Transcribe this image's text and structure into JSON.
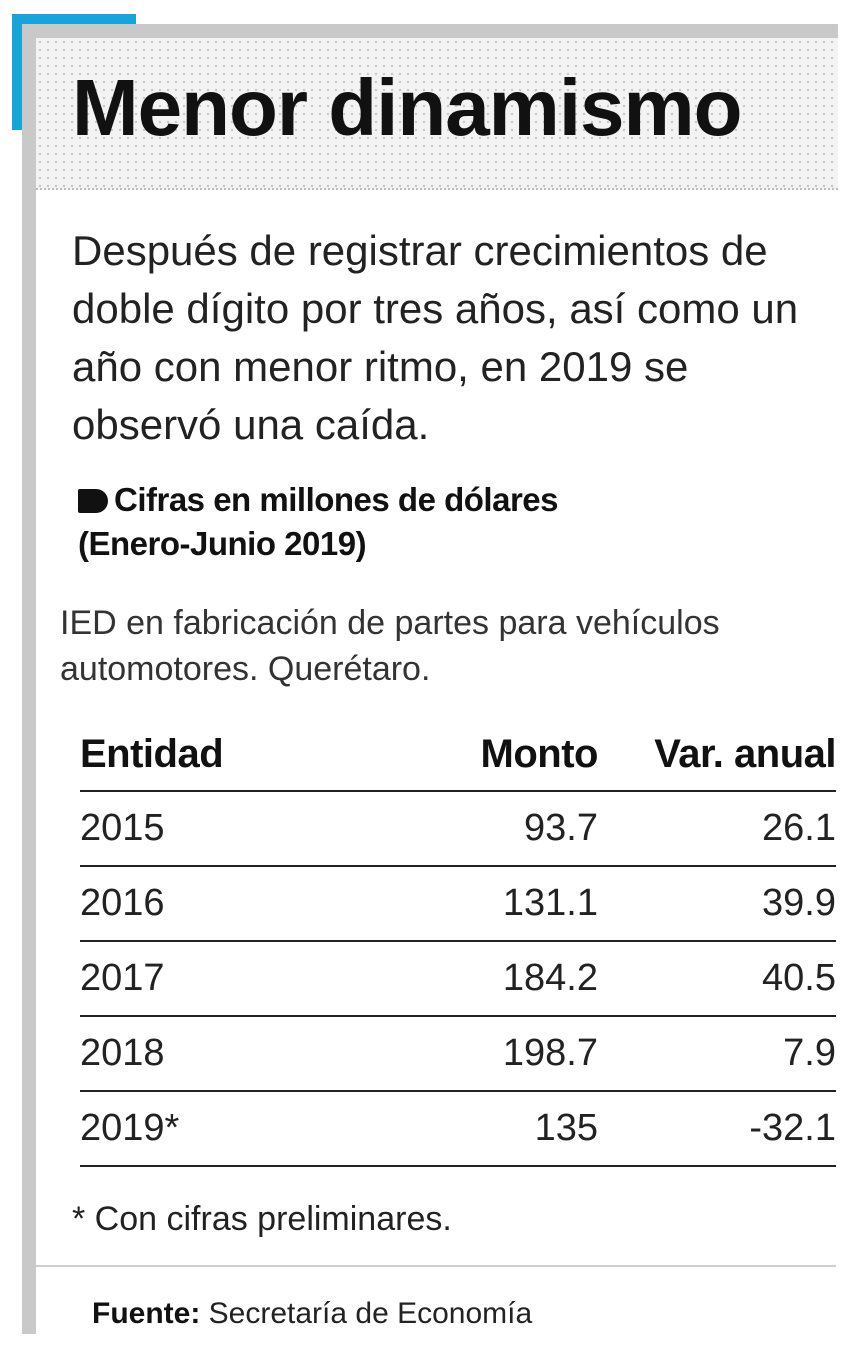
{
  "title": "Menor dinamismo",
  "lead": "Después de registrar crecimientos de doble dígito por tres años, así como un año con menor ritmo, en 2019 se observó una caída.",
  "note_heading": {
    "line1": "Cifras en millones de dólares",
    "line2": "(Enero-Junio 2019)"
  },
  "subtitle": "IED en fabricación de partes para vehículos automotores. Querétaro.",
  "table": {
    "headers": [
      "Entidad",
      "Monto",
      "Var. anual"
    ],
    "rows": [
      [
        "2015",
        "93.7",
        "26.1"
      ],
      [
        "2016",
        "131.1",
        "39.9"
      ],
      [
        "2017",
        "184.2",
        "40.5"
      ],
      [
        "2018",
        "198.7",
        "7.9"
      ],
      [
        "2019*",
        "135",
        "-32.1"
      ]
    ]
  },
  "footnote": "* Con cifras preliminares.",
  "source": {
    "label": "Fuente:",
    "text": "Secretaría de Economía"
  },
  "colors": {
    "accent": "#1aa3d9",
    "frame": "#c9c9c9",
    "text": "#1a1a1a"
  }
}
